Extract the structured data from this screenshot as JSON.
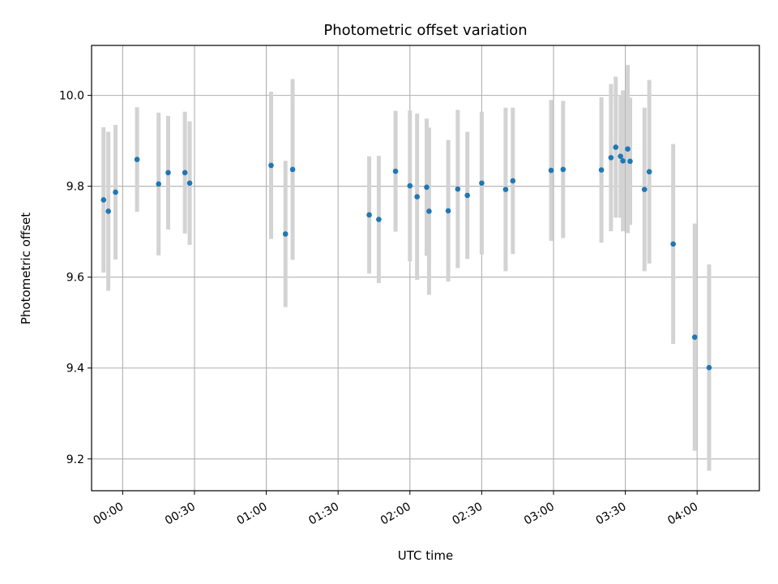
{
  "chart_data": {
    "type": "scatter",
    "title": "Photometric offset variation",
    "xlabel": "UTC time",
    "ylabel": "Photometric offset",
    "xlim": [
      "23:47",
      "04:26"
    ],
    "ylim": [
      9.13,
      10.11
    ],
    "grid": true,
    "xticks": [
      "00:00",
      "00:30",
      "01:00",
      "01:30",
      "02:00",
      "02:30",
      "03:00",
      "03:30",
      "04:00"
    ],
    "yticks": [
      "9.2",
      "9.4",
      "9.6",
      "9.8",
      "10.0"
    ],
    "colors": {
      "point": "#1f77b4",
      "errorbar": "#d3d3d3",
      "grid": "#b0b0b0"
    },
    "points": [
      {
        "x": "23:52",
        "y": 9.77,
        "err": 0.16
      },
      {
        "x": "23:54",
        "y": 9.745,
        "err": 0.175
      },
      {
        "x": "23:57",
        "y": 9.787,
        "err": 0.148
      },
      {
        "x": "00:06",
        "y": 9.859,
        "err": 0.115
      },
      {
        "x": "00:15",
        "y": 9.805,
        "err": 0.157
      },
      {
        "x": "00:19",
        "y": 9.83,
        "err": 0.125
      },
      {
        "x": "00:26",
        "y": 9.83,
        "err": 0.134
      },
      {
        "x": "00:28",
        "y": 9.807,
        "err": 0.136
      },
      {
        "x": "01:02",
        "y": 9.846,
        "err": 0.162
      },
      {
        "x": "01:08",
        "y": 9.695,
        "err": 0.161
      },
      {
        "x": "01:11",
        "y": 9.837,
        "err": 0.199
      },
      {
        "x": "01:43",
        "y": 9.737,
        "err": 0.129
      },
      {
        "x": "01:47",
        "y": 9.727,
        "err": 0.14
      },
      {
        "x": "01:54",
        "y": 9.833,
        "err": 0.133
      },
      {
        "x": "02:00",
        "y": 9.801,
        "err": 0.166
      },
      {
        "x": "02:03",
        "y": 9.777,
        "err": 0.183
      },
      {
        "x": "02:07",
        "y": 9.798,
        "err": 0.151
      },
      {
        "x": "02:08",
        "y": 9.745,
        "err": 0.184
      },
      {
        "x": "02:16",
        "y": 9.746,
        "err": 0.156
      },
      {
        "x": "02:20",
        "y": 9.794,
        "err": 0.174
      },
      {
        "x": "02:24",
        "y": 9.78,
        "err": 0.14
      },
      {
        "x": "02:30",
        "y": 9.807,
        "err": 0.157
      },
      {
        "x": "02:40",
        "y": 9.793,
        "err": 0.18
      },
      {
        "x": "02:43",
        "y": 9.812,
        "err": 0.161
      },
      {
        "x": "02:59",
        "y": 9.835,
        "err": 0.155
      },
      {
        "x": "03:04",
        "y": 9.837,
        "err": 0.151
      },
      {
        "x": "03:20",
        "y": 9.836,
        "err": 0.16
      },
      {
        "x": "03:24",
        "y": 9.863,
        "err": 0.162
      },
      {
        "x": "03:26",
        "y": 9.886,
        "err": 0.155
      },
      {
        "x": "03:28",
        "y": 9.866,
        "err": 0.135
      },
      {
        "x": "03:29",
        "y": 9.856,
        "err": 0.155
      },
      {
        "x": "03:31",
        "y": 9.882,
        "err": 0.185
      },
      {
        "x": "03:32",
        "y": 9.855,
        "err": 0.14
      },
      {
        "x": "03:38",
        "y": 9.793,
        "err": 0.18
      },
      {
        "x": "03:40",
        "y": 9.832,
        "err": 0.202
      },
      {
        "x": "03:50",
        "y": 9.673,
        "err": 0.22
      },
      {
        "x": "03:59",
        "y": 9.468,
        "err": 0.25
      },
      {
        "x": "04:05",
        "y": 9.401,
        "err": 0.227
      }
    ]
  }
}
